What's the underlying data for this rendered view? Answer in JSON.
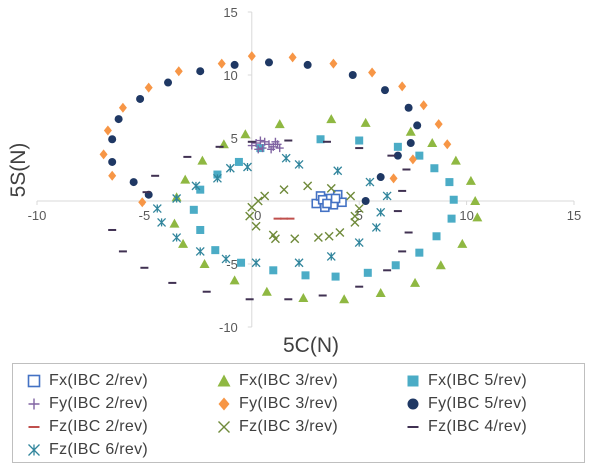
{
  "chart_data": {
    "type": "scatter",
    "title": "",
    "xlabel": "5C(N)",
    "ylabel": "5S(N)",
    "xlim": [
      -10,
      15
    ],
    "ylim": [
      -10,
      15
    ],
    "xticks": [
      "-10",
      "-5",
      "0",
      "5",
      "10",
      "15"
    ],
    "yticks": [
      "15",
      "10",
      "5",
      "0",
      "-5",
      "-10"
    ],
    "grid": false,
    "legend_position": "bottom",
    "series": [
      {
        "name": "Fx(IBC 2/rev)",
        "marker": "square-open",
        "color": "#4472c4",
        "points": [
          [
            3.0,
            -0.2
          ],
          [
            3.2,
            0.4
          ],
          [
            3.4,
            -0.5
          ],
          [
            3.6,
            0.2
          ],
          [
            3.8,
            -0.3
          ],
          [
            4.0,
            0.5
          ],
          [
            4.2,
            -0.1
          ],
          [
            3.3,
            0.1
          ],
          [
            3.9,
            0.2
          ],
          [
            3.5,
            -0.2
          ]
        ]
      },
      {
        "name": "Fx(IBC 3/rev)",
        "marker": "triangle",
        "color": "#8fb842",
        "points": [
          [
            -0.3,
            5.3
          ],
          [
            1.3,
            6.1
          ],
          [
            3.7,
            6.5
          ],
          [
            5.3,
            6.2
          ],
          [
            7.4,
            5.5
          ],
          [
            8.4,
            4.6
          ],
          [
            9.5,
            3.2
          ],
          [
            10.2,
            1.6
          ],
          [
            10.4,
            0.0
          ],
          [
            10.5,
            -1.3
          ],
          [
            9.8,
            -3.4
          ],
          [
            8.8,
            -5.1
          ],
          [
            7.6,
            -6.5
          ],
          [
            6.0,
            -7.3
          ],
          [
            4.3,
            -7.8
          ],
          [
            2.4,
            -7.7
          ],
          [
            0.7,
            -7.2
          ],
          [
            -0.8,
            -6.3
          ],
          [
            -2.2,
            -5.0
          ],
          [
            -3.2,
            -3.4
          ],
          [
            -3.6,
            -1.8
          ],
          [
            -3.5,
            0.3
          ],
          [
            -3.1,
            1.7
          ],
          [
            -2.3,
            3.2
          ],
          [
            -1.3,
            4.5
          ]
        ]
      },
      {
        "name": "Fx(IBC 5/rev)",
        "marker": "square",
        "color": "#4bacc6",
        "points": [
          [
            0.4,
            4.2
          ],
          [
            3.2,
            4.9
          ],
          [
            5.0,
            4.8
          ],
          [
            6.8,
            4.3
          ],
          [
            7.8,
            3.6
          ],
          [
            8.5,
            2.6
          ],
          [
            9.2,
            1.5
          ],
          [
            9.4,
            0.1
          ],
          [
            9.3,
            -1.4
          ],
          [
            8.6,
            -2.8
          ],
          [
            7.8,
            -4.1
          ],
          [
            6.7,
            -5.1
          ],
          [
            5.4,
            -5.7
          ],
          [
            3.9,
            -6.0
          ],
          [
            2.5,
            -5.9
          ],
          [
            1.0,
            -5.5
          ],
          [
            -0.5,
            -4.9
          ],
          [
            -1.7,
            -3.9
          ],
          [
            -2.4,
            -2.3
          ],
          [
            -2.7,
            -0.7
          ],
          [
            -2.4,
            0.9
          ],
          [
            -1.6,
            2.1
          ],
          [
            -0.6,
            3.1
          ]
        ]
      },
      {
        "name": "Fy(IBC 2/rev)",
        "marker": "plus",
        "color": "#8064a2",
        "points": [
          [
            0.0,
            4.4
          ],
          [
            0.2,
            4.6
          ],
          [
            0.4,
            4.8
          ],
          [
            0.6,
            4.7
          ],
          [
            0.8,
            4.5
          ],
          [
            1.0,
            4.3
          ],
          [
            1.2,
            4.5
          ],
          [
            1.3,
            4.2
          ],
          [
            0.9,
            4.1
          ],
          [
            0.5,
            4.2
          ],
          [
            0.3,
            4.1
          ],
          [
            1.1,
            4.7
          ]
        ]
      },
      {
        "name": "Fy(IBC 3/rev)",
        "marker": "diamond",
        "color": "#f79646",
        "points": [
          [
            0.0,
            11.5
          ],
          [
            1.9,
            11.4
          ],
          [
            3.8,
            10.9
          ],
          [
            5.6,
            10.2
          ],
          [
            7.0,
            9.1
          ],
          [
            8.0,
            7.6
          ],
          [
            8.7,
            6.1
          ],
          [
            9.1,
            4.5
          ],
          [
            7.5,
            3.3
          ],
          [
            6.6,
            1.8
          ],
          [
            -1.4,
            10.9
          ],
          [
            -3.4,
            10.3
          ],
          [
            -4.8,
            9.0
          ],
          [
            -6.0,
            7.4
          ],
          [
            -6.7,
            5.6
          ],
          [
            -6.9,
            3.7
          ],
          [
            -6.5,
            2.0
          ],
          [
            -5.1,
            -0.1
          ]
        ]
      },
      {
        "name": "Fy(IBC 5/rev)",
        "marker": "circle",
        "color": "#1f3864",
        "points": [
          [
            -2.4,
            10.3
          ],
          [
            -0.8,
            10.8
          ],
          [
            0.8,
            11.0
          ],
          [
            2.6,
            10.8
          ],
          [
            4.7,
            10.0
          ],
          [
            6.2,
            8.8
          ],
          [
            7.3,
            7.4
          ],
          [
            7.7,
            6.0
          ],
          [
            7.4,
            4.6
          ],
          [
            6.8,
            3.6
          ],
          [
            6.0,
            1.9
          ],
          [
            5.3,
            0.0
          ],
          [
            -3.9,
            9.4
          ],
          [
            -5.2,
            8.1
          ],
          [
            -6.2,
            6.5
          ],
          [
            -6.5,
            4.9
          ],
          [
            -6.5,
            3.1
          ],
          [
            -5.5,
            1.5
          ],
          [
            -4.8,
            0.5
          ]
        ]
      },
      {
        "name": "Fz(IBC 2/rev)",
        "marker": "dash",
        "color": "#c0504d",
        "points": [
          [
            1.2,
            -1.4
          ],
          [
            1.5,
            -1.4
          ],
          [
            1.8,
            -1.4
          ]
        ]
      },
      {
        "name": "Fz(IBC 3/rev)",
        "marker": "x",
        "color": "#6f8a3a",
        "points": [
          [
            0.0,
            -0.5
          ],
          [
            0.6,
            0.4
          ],
          [
            1.5,
            0.9
          ],
          [
            2.6,
            1.2
          ],
          [
            3.7,
            1.0
          ],
          [
            4.6,
            0.4
          ],
          [
            5.0,
            -0.6
          ],
          [
            4.8,
            -1.7
          ],
          [
            4.1,
            -2.5
          ],
          [
            3.1,
            -2.9
          ],
          [
            2.0,
            -3.0
          ],
          [
            1.0,
            -2.7
          ],
          [
            0.2,
            -2.0
          ],
          [
            -0.1,
            -1.2
          ],
          [
            1.1,
            -3.0
          ],
          [
            3.6,
            -2.8
          ],
          [
            4.8,
            -1.2
          ],
          [
            0.3,
            0.0
          ]
        ]
      },
      {
        "name": "Fz(IBC 4/rev)",
        "marker": "dash",
        "color": "#403152",
        "points": [
          [
            -3.0,
            3.5
          ],
          [
            -1.5,
            4.3
          ],
          [
            0.0,
            4.7
          ],
          [
            1.7,
            4.8
          ],
          [
            3.5,
            4.7
          ],
          [
            5.0,
            4.2
          ],
          [
            6.5,
            3.6
          ],
          [
            7.2,
            2.5
          ],
          [
            7.0,
            0.8
          ],
          [
            6.8,
            -0.8
          ],
          [
            7.3,
            -2.5
          ],
          [
            7.0,
            -4.0
          ],
          [
            6.3,
            -5.5
          ],
          [
            5.0,
            -6.8
          ],
          [
            3.3,
            -7.5
          ],
          [
            1.7,
            -7.8
          ],
          [
            -0.1,
            -7.8
          ],
          [
            -2.1,
            -7.2
          ],
          [
            -3.7,
            -6.5
          ],
          [
            -5.0,
            -5.3
          ],
          [
            -6.0,
            -4.0
          ],
          [
            -6.5,
            -2.3
          ],
          [
            -4.9,
            0.7
          ],
          [
            -4.5,
            2.0
          ]
        ]
      },
      {
        "name": "Fz(IBC 6/rev)",
        "marker": "asterisk",
        "color": "#31859c",
        "points": [
          [
            -1.6,
            1.8
          ],
          [
            -0.2,
            2.7
          ],
          [
            1.6,
            3.4
          ],
          [
            2.2,
            2.9
          ],
          [
            4.0,
            2.4
          ],
          [
            5.5,
            1.5
          ],
          [
            6.3,
            0.4
          ],
          [
            6.0,
            -0.9
          ],
          [
            5.8,
            -2.1
          ],
          [
            5.0,
            -3.3
          ],
          [
            3.7,
            -4.4
          ],
          [
            2.2,
            -4.9
          ],
          [
            0.2,
            -4.9
          ],
          [
            -1.2,
            -4.6
          ],
          [
            -2.4,
            -4.0
          ],
          [
            -3.5,
            -2.9
          ],
          [
            -4.2,
            -1.7
          ],
          [
            -4.4,
            -0.6
          ],
          [
            -3.5,
            0.2
          ],
          [
            -2.6,
            1.2
          ],
          [
            -1.0,
            2.6
          ]
        ]
      }
    ]
  }
}
